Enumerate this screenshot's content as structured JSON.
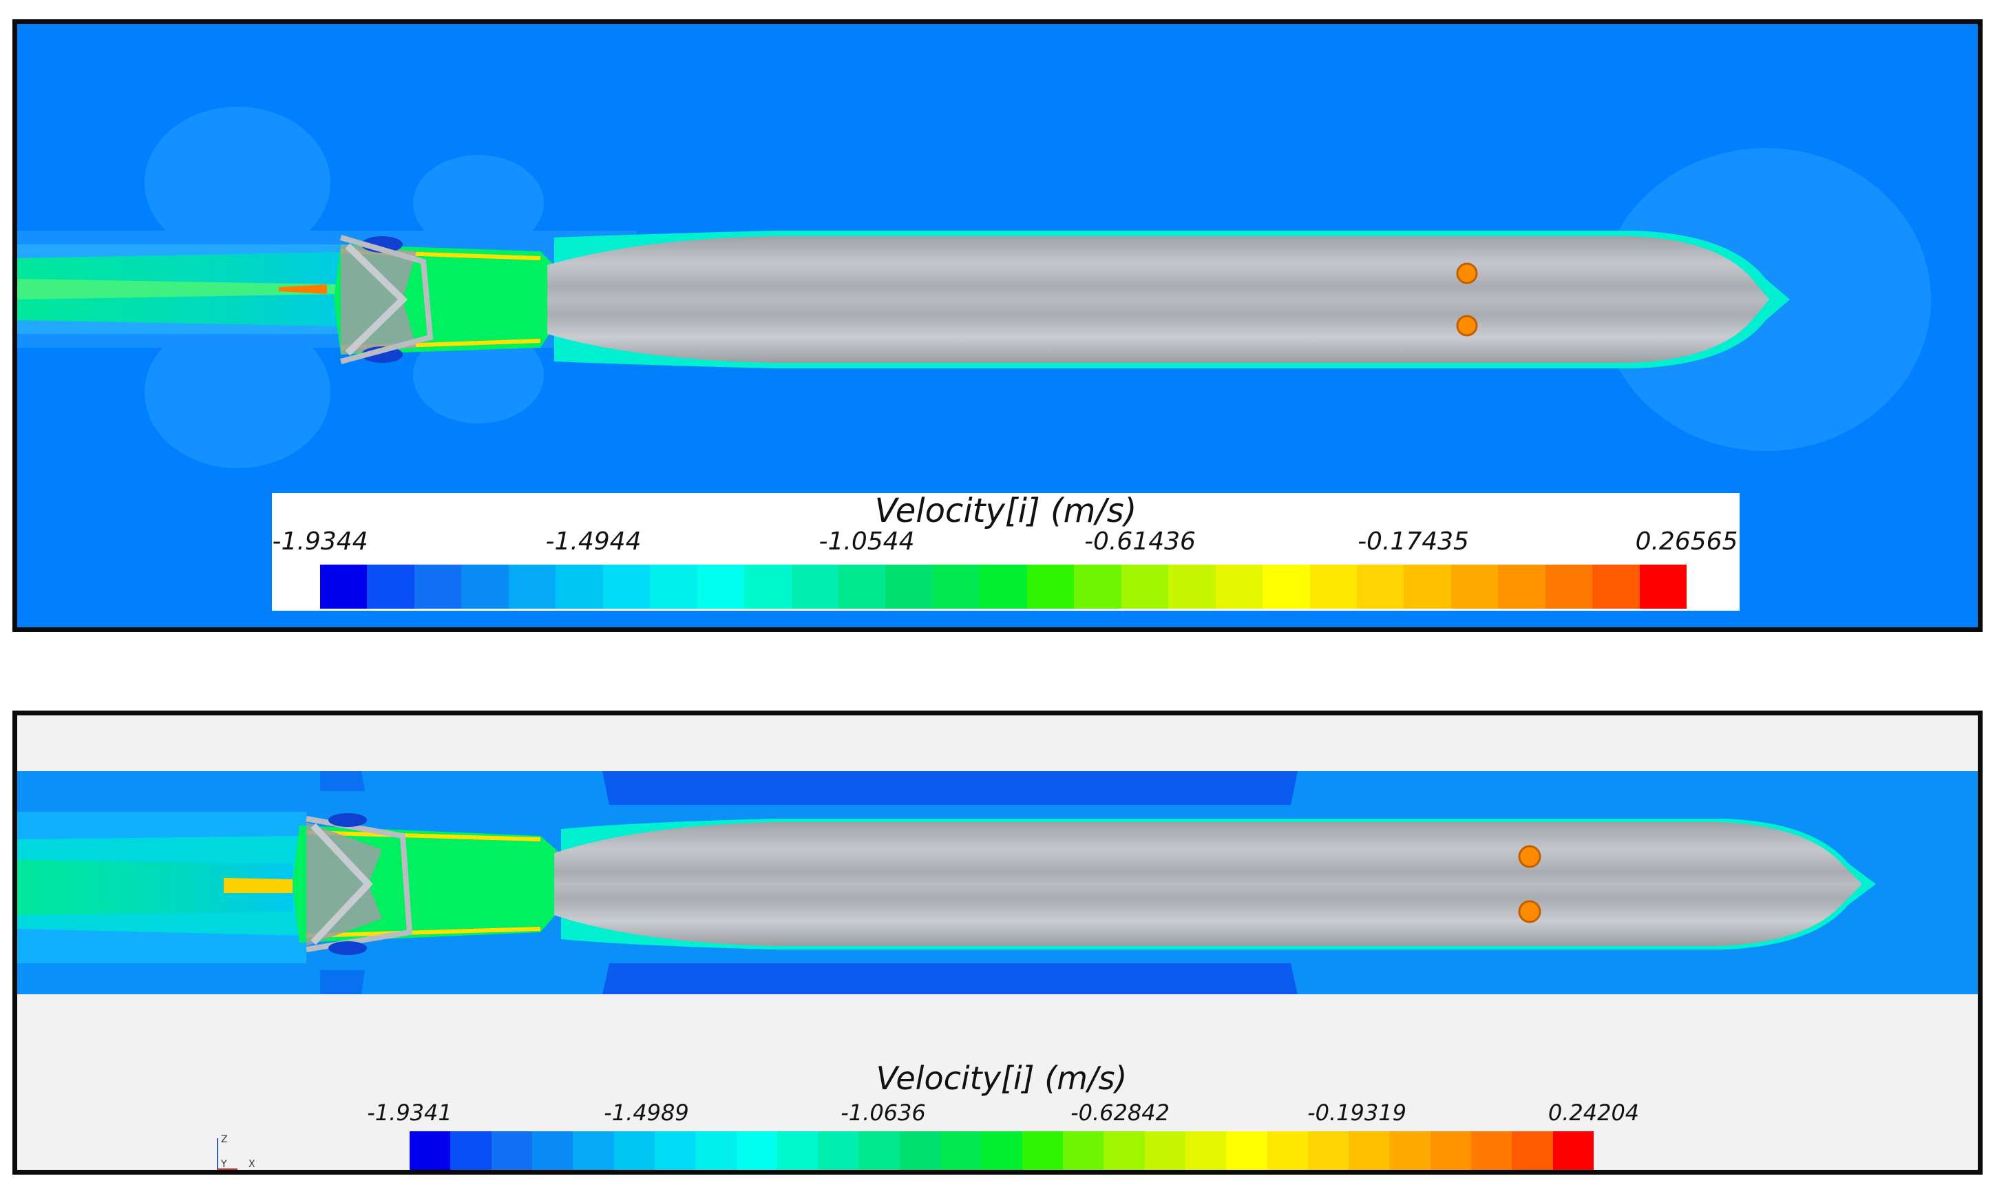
{
  "panels": [
    {
      "legend": {
        "title": "Velocity[i] (m/s)",
        "ticks": [
          "-1.9344",
          "-1.4944",
          "-1.0544",
          "-0.61436",
          "-0.17435",
          "0.26565"
        ]
      }
    },
    {
      "legend": {
        "title": "Velocity[i] (m/s)",
        "ticks": [
          "-1.9341",
          "-1.4989",
          "-1.0636",
          "-0.62842",
          "-0.19319",
          "0.24204"
        ]
      },
      "axes": {
        "z": "Z",
        "y": "Y",
        "x": "X"
      }
    }
  ],
  "colormap": [
    "#0000ee",
    "#0a4ef5",
    "#1070f6",
    "#0a8cf7",
    "#05aaf6",
    "#00c6f5",
    "#00dcf5",
    "#00f0f0",
    "#00ffee",
    "#00f8cf",
    "#00eeb0",
    "#00e890",
    "#00e070",
    "#00e850",
    "#00f030",
    "#30f500",
    "#70f500",
    "#a0f500",
    "#c8f500",
    "#e6f500",
    "#ffff00",
    "#ffe800",
    "#ffd400",
    "#ffc000",
    "#ffaa00",
    "#ff9400",
    "#ff7a00",
    "#ff5a00",
    "#ff0000"
  ],
  "colors": {
    "freestream": "#0080ff",
    "hull": "#a9adb2",
    "wall": "#f2f2f2"
  }
}
